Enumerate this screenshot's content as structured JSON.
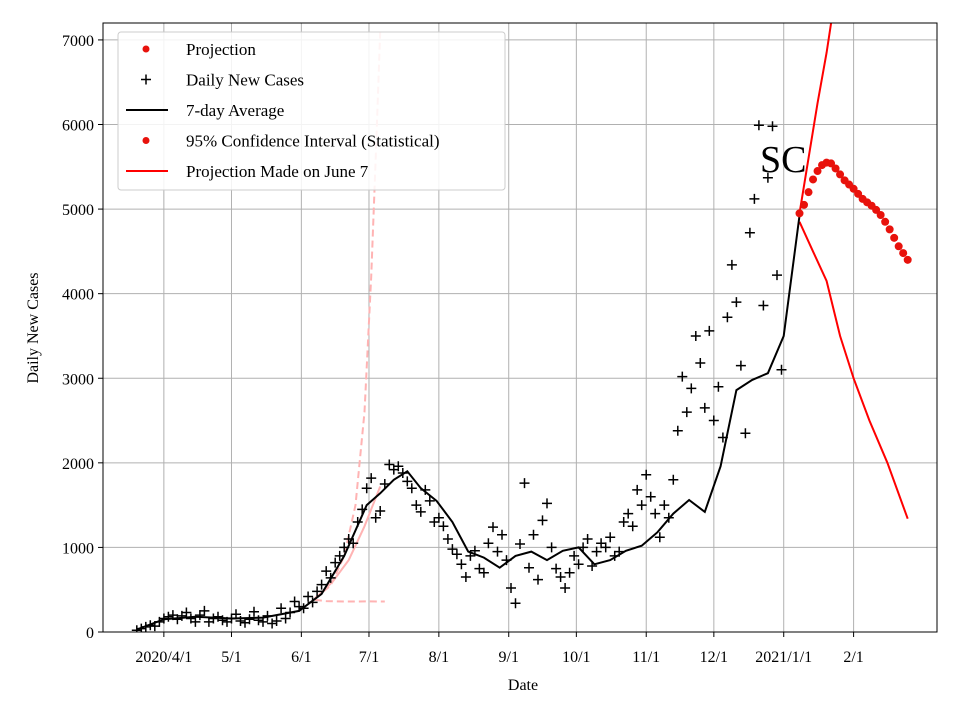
{
  "chart_data": {
    "type": "line",
    "title": "",
    "xlabel": "Date",
    "ylabel": "Daily New Cases",
    "x_type": "date",
    "xlim": [
      "2020-03-05",
      "2021-03-10"
    ],
    "ylim": [
      0,
      7200
    ],
    "x_ticks": [
      {
        "date": "2020-04-01",
        "label": "2020/4/1"
      },
      {
        "date": "2020-05-01",
        "label": "5/1"
      },
      {
        "date": "2020-06-01",
        "label": "6/1"
      },
      {
        "date": "2020-07-01",
        "label": "7/1"
      },
      {
        "date": "2020-08-01",
        "label": "8/1"
      },
      {
        "date": "2020-09-01",
        "label": "9/1"
      },
      {
        "date": "2020-10-01",
        "label": "10/1"
      },
      {
        "date": "2020-11-01",
        "label": "11/1"
      },
      {
        "date": "2020-12-01",
        "label": "12/1"
      },
      {
        "date": "2021-01-01",
        "label": "2021/1/1"
      },
      {
        "date": "2021-02-01",
        "label": "2/1"
      }
    ],
    "y_ticks": [
      0,
      1000,
      2000,
      3000,
      4000,
      5000,
      6000,
      7000
    ],
    "grid": true,
    "legend_position": "upper-left",
    "annotation": "SC",
    "series": [
      {
        "name": "Projection",
        "kind": "dots",
        "color": "#e8120c",
        "points": [
          [
            "2021-01-08",
            4950
          ],
          [
            "2021-01-10",
            5050
          ],
          [
            "2021-01-12",
            5200
          ],
          [
            "2021-01-14",
            5350
          ],
          [
            "2021-01-16",
            5450
          ],
          [
            "2021-01-18",
            5520
          ],
          [
            "2021-01-20",
            5550
          ],
          [
            "2021-01-22",
            5540
          ],
          [
            "2021-01-24",
            5480
          ],
          [
            "2021-01-26",
            5410
          ],
          [
            "2021-01-28",
            5340
          ],
          [
            "2021-01-30",
            5290
          ],
          [
            "2021-02-01",
            5240
          ],
          [
            "2021-02-03",
            5180
          ],
          [
            "2021-02-05",
            5120
          ],
          [
            "2021-02-07",
            5080
          ],
          [
            "2021-02-09",
            5040
          ],
          [
            "2021-02-11",
            4990
          ],
          [
            "2021-02-13",
            4930
          ],
          [
            "2021-02-15",
            4850
          ],
          [
            "2021-02-17",
            4760
          ],
          [
            "2021-02-19",
            4660
          ],
          [
            "2021-02-21",
            4560
          ],
          [
            "2021-02-23",
            4480
          ],
          [
            "2021-02-25",
            4400
          ]
        ]
      },
      {
        "name": "Daily New Cases",
        "kind": "markers",
        "color": "#000000",
        "points": [
          [
            "2020-03-20",
            20
          ],
          [
            "2020-03-22",
            40
          ],
          [
            "2020-03-24",
            60
          ],
          [
            "2020-03-26",
            80
          ],
          [
            "2020-03-28",
            70
          ],
          [
            "2020-03-30",
            120
          ],
          [
            "2020-04-01",
            160
          ],
          [
            "2020-04-03",
            180
          ],
          [
            "2020-04-05",
            200
          ],
          [
            "2020-04-07",
            150
          ],
          [
            "2020-04-09",
            190
          ],
          [
            "2020-04-11",
            230
          ],
          [
            "2020-04-13",
            160
          ],
          [
            "2020-04-15",
            120
          ],
          [
            "2020-04-17",
            200
          ],
          [
            "2020-04-19",
            250
          ],
          [
            "2020-04-21",
            120
          ],
          [
            "2020-04-23",
            160
          ],
          [
            "2020-04-25",
            180
          ],
          [
            "2020-04-27",
            140
          ],
          [
            "2020-04-29",
            120
          ],
          [
            "2020-05-01",
            160
          ],
          [
            "2020-05-03",
            210
          ],
          [
            "2020-05-05",
            130
          ],
          [
            "2020-05-07",
            110
          ],
          [
            "2020-05-09",
            150
          ],
          [
            "2020-05-11",
            240
          ],
          [
            "2020-05-13",
            140
          ],
          [
            "2020-05-15",
            120
          ],
          [
            "2020-05-17",
            190
          ],
          [
            "2020-05-19",
            100
          ],
          [
            "2020-05-21",
            130
          ],
          [
            "2020-05-23",
            280
          ],
          [
            "2020-05-25",
            160
          ],
          [
            "2020-05-27",
            230
          ],
          [
            "2020-05-29",
            360
          ],
          [
            "2020-05-31",
            300
          ],
          [
            "2020-06-02",
            280
          ],
          [
            "2020-06-04",
            420
          ],
          [
            "2020-06-06",
            350
          ],
          [
            "2020-06-08",
            480
          ],
          [
            "2020-06-10",
            560
          ],
          [
            "2020-06-12",
            720
          ],
          [
            "2020-06-14",
            640
          ],
          [
            "2020-06-16",
            820
          ],
          [
            "2020-06-18",
            900
          ],
          [
            "2020-06-20",
            1000
          ],
          [
            "2020-06-22",
            1100
          ],
          [
            "2020-06-24",
            1050
          ],
          [
            "2020-06-26",
            1300
          ],
          [
            "2020-06-28",
            1450
          ],
          [
            "2020-06-30",
            1700
          ],
          [
            "2020-07-02",
            1820
          ],
          [
            "2020-07-04",
            1350
          ],
          [
            "2020-07-06",
            1430
          ],
          [
            "2020-07-08",
            1750
          ],
          [
            "2020-07-10",
            1980
          ],
          [
            "2020-07-12",
            1920
          ],
          [
            "2020-07-14",
            1960
          ],
          [
            "2020-07-16",
            1880
          ],
          [
            "2020-07-18",
            1780
          ],
          [
            "2020-07-20",
            1700
          ],
          [
            "2020-07-22",
            1500
          ],
          [
            "2020-07-24",
            1420
          ],
          [
            "2020-07-26",
            1680
          ],
          [
            "2020-07-28",
            1550
          ],
          [
            "2020-07-30",
            1300
          ],
          [
            "2020-08-01",
            1350
          ],
          [
            "2020-08-03",
            1250
          ],
          [
            "2020-08-05",
            1100
          ],
          [
            "2020-08-07",
            980
          ],
          [
            "2020-08-09",
            920
          ],
          [
            "2020-08-11",
            800
          ],
          [
            "2020-08-13",
            650
          ],
          [
            "2020-08-15",
            900
          ],
          [
            "2020-08-17",
            960
          ],
          [
            "2020-08-19",
            750
          ],
          [
            "2020-08-21",
            700
          ],
          [
            "2020-08-23",
            1050
          ],
          [
            "2020-08-25",
            1240
          ],
          [
            "2020-08-27",
            950
          ],
          [
            "2020-08-29",
            1150
          ],
          [
            "2020-08-31",
            850
          ],
          [
            "2020-09-02",
            520
          ],
          [
            "2020-09-04",
            340
          ],
          [
            "2020-09-06",
            1040
          ],
          [
            "2020-09-08",
            1760
          ],
          [
            "2020-09-10",
            760
          ],
          [
            "2020-09-12",
            1150
          ],
          [
            "2020-09-14",
            620
          ],
          [
            "2020-09-16",
            1320
          ],
          [
            "2020-09-18",
            1520
          ],
          [
            "2020-09-20",
            1000
          ],
          [
            "2020-09-22",
            750
          ],
          [
            "2020-09-24",
            650
          ],
          [
            "2020-09-26",
            520
          ],
          [
            "2020-09-28",
            700
          ],
          [
            "2020-09-30",
            900
          ],
          [
            "2020-10-02",
            800
          ],
          [
            "2020-10-04",
            1000
          ],
          [
            "2020-10-06",
            1100
          ],
          [
            "2020-10-08",
            780
          ],
          [
            "2020-10-10",
            950
          ],
          [
            "2020-10-12",
            1050
          ],
          [
            "2020-10-14",
            1000
          ],
          [
            "2020-10-16",
            1120
          ],
          [
            "2020-10-18",
            900
          ],
          [
            "2020-10-20",
            950
          ],
          [
            "2020-10-22",
            1300
          ],
          [
            "2020-10-24",
            1400
          ],
          [
            "2020-10-26",
            1250
          ],
          [
            "2020-10-28",
            1680
          ],
          [
            "2020-10-30",
            1500
          ],
          [
            "2020-11-01",
            1860
          ],
          [
            "2020-11-03",
            1600
          ],
          [
            "2020-11-05",
            1400
          ],
          [
            "2020-11-07",
            1120
          ],
          [
            "2020-11-09",
            1500
          ],
          [
            "2020-11-11",
            1350
          ],
          [
            "2020-11-13",
            1800
          ],
          [
            "2020-11-15",
            2380
          ],
          [
            "2020-11-17",
            3020
          ],
          [
            "2020-11-19",
            2600
          ],
          [
            "2020-11-21",
            2880
          ],
          [
            "2020-11-23",
            3500
          ],
          [
            "2020-11-25",
            3180
          ],
          [
            "2020-11-27",
            2650
          ],
          [
            "2020-11-29",
            3560
          ],
          [
            "2020-12-01",
            2500
          ],
          [
            "2020-12-03",
            2900
          ],
          [
            "2020-12-05",
            2300
          ],
          [
            "2020-12-07",
            3720
          ],
          [
            "2020-12-09",
            4340
          ],
          [
            "2020-12-11",
            3900
          ],
          [
            "2020-12-13",
            3150
          ],
          [
            "2020-12-15",
            2350
          ],
          [
            "2020-12-17",
            4720
          ],
          [
            "2020-12-19",
            5120
          ],
          [
            "2020-12-21",
            5990
          ],
          [
            "2020-12-23",
            3860
          ],
          [
            "2020-12-25",
            5370
          ],
          [
            "2020-12-27",
            5980
          ],
          [
            "2020-12-29",
            4220
          ],
          [
            "2020-12-31",
            3100
          ]
        ]
      },
      {
        "name": "7-day Average",
        "kind": "line",
        "color": "#000000",
        "points": [
          [
            "2020-03-20",
            30
          ],
          [
            "2020-04-01",
            150
          ],
          [
            "2020-04-15",
            180
          ],
          [
            "2020-05-01",
            160
          ],
          [
            "2020-05-15",
            170
          ],
          [
            "2020-05-31",
            250
          ],
          [
            "2020-06-10",
            450
          ],
          [
            "2020-06-20",
            900
          ],
          [
            "2020-06-30",
            1500
          ],
          [
            "2020-07-06",
            1640
          ],
          [
            "2020-07-12",
            1800
          ],
          [
            "2020-07-18",
            1900
          ],
          [
            "2020-07-24",
            1700
          ],
          [
            "2020-07-31",
            1550
          ],
          [
            "2020-08-07",
            1300
          ],
          [
            "2020-08-14",
            950
          ],
          [
            "2020-08-21",
            880
          ],
          [
            "2020-08-28",
            760
          ],
          [
            "2020-09-04",
            900
          ],
          [
            "2020-09-11",
            950
          ],
          [
            "2020-09-18",
            850
          ],
          [
            "2020-09-25",
            960
          ],
          [
            "2020-10-02",
            1000
          ],
          [
            "2020-10-09",
            800
          ],
          [
            "2020-10-16",
            850
          ],
          [
            "2020-10-23",
            960
          ],
          [
            "2020-10-30",
            1020
          ],
          [
            "2020-11-06",
            1180
          ],
          [
            "2020-11-13",
            1400
          ],
          [
            "2020-11-20",
            1560
          ],
          [
            "2020-11-27",
            1420
          ],
          [
            "2020-12-04",
            1960
          ],
          [
            "2020-12-11",
            2860
          ],
          [
            "2020-12-18",
            2980
          ],
          [
            "2020-12-25",
            3060
          ],
          [
            "2021-01-01",
            3500
          ],
          [
            "2021-01-08",
            4920
          ]
        ]
      },
      {
        "name": "95% Confidence Interval (Statistical)",
        "kind": "lines",
        "color": "#ff0000",
        "upper": [
          [
            "2021-01-08",
            4950
          ],
          [
            "2021-01-12",
            5600
          ],
          [
            "2021-01-16",
            6250
          ],
          [
            "2021-01-20",
            6850
          ],
          [
            "2021-01-22",
            7200
          ]
        ],
        "lower": [
          [
            "2021-01-08",
            4850
          ],
          [
            "2021-01-14",
            4500
          ],
          [
            "2021-01-20",
            4150
          ],
          [
            "2021-01-26",
            3500
          ],
          [
            "2021-02-01",
            3000
          ],
          [
            "2021-02-08",
            2500
          ],
          [
            "2021-02-16",
            2000
          ],
          [
            "2021-02-25",
            1340
          ]
        ]
      },
      {
        "name": "Projection Made on June 7",
        "kind": "dashed",
        "color": "#ffb3b3",
        "upper": [
          [
            "2020-06-07",
            400
          ],
          [
            "2020-06-14",
            550
          ],
          [
            "2020-06-20",
            900
          ],
          [
            "2020-06-25",
            1500
          ],
          [
            "2020-06-29",
            2600
          ],
          [
            "2020-07-02",
            4200
          ],
          [
            "2020-07-04",
            5600
          ],
          [
            "2020-07-06",
            7100
          ]
        ],
        "lower": [
          [
            "2020-06-07",
            380
          ],
          [
            "2020-06-12",
            365
          ],
          [
            "2020-06-20",
            360
          ],
          [
            "2020-07-01",
            362
          ],
          [
            "2020-07-08",
            360
          ]
        ],
        "fit": [
          [
            "2020-06-07",
            390
          ],
          [
            "2020-06-15",
            600
          ],
          [
            "2020-06-22",
            850
          ],
          [
            "2020-06-29",
            1250
          ],
          [
            "2020-07-06",
            1720
          ]
        ]
      }
    ]
  }
}
